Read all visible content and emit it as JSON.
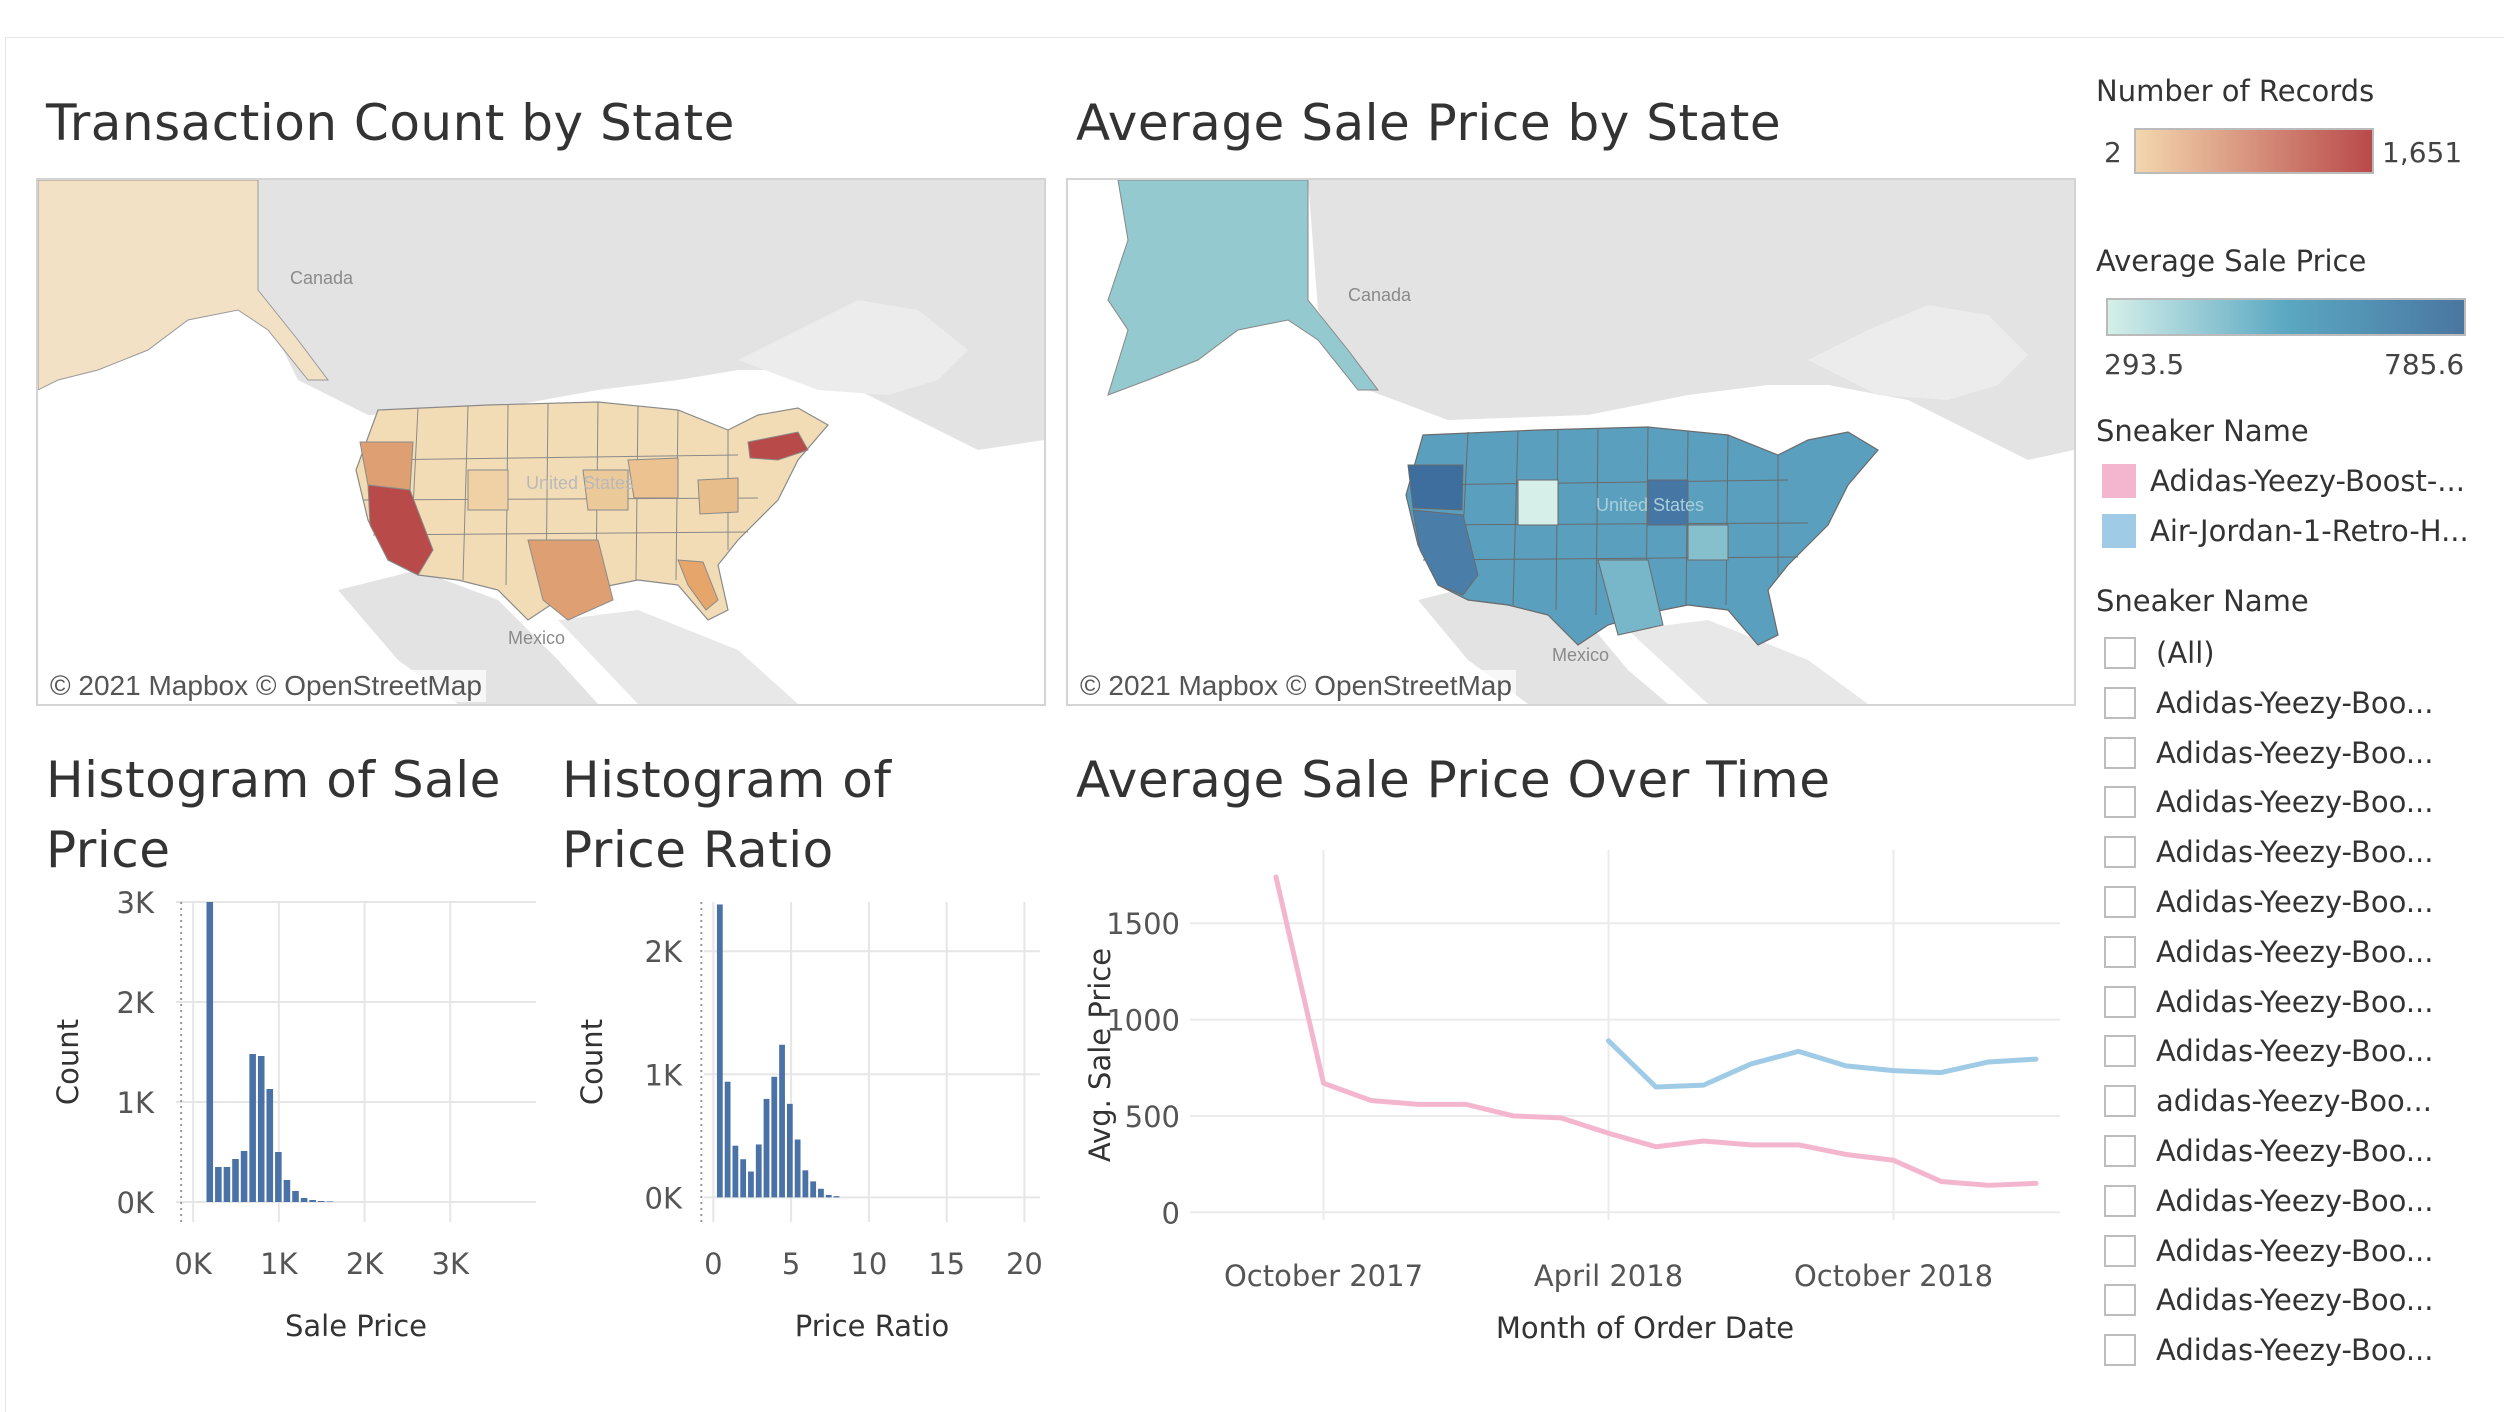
{
  "colors": {
    "count_low": "#f3d7ae",
    "count_high": "#b94a4a",
    "price_low": "#d6efe9",
    "price_high": "#4a76a0",
    "series_yeezy": "#f4b6ce",
    "series_jordan": "#9fcbe6",
    "bar": "#4a72a6"
  },
  "maps": {
    "count": {
      "title": "Transaction Count by State",
      "attribution": "© 2021 Mapbox  © OpenStreetMap",
      "labels": [
        "Canada",
        "Mexico",
        "United States"
      ]
    },
    "price": {
      "title": "Average Sale Price by State",
      "attribution": "© 2021 Mapbox  © OpenStreetMap",
      "labels": [
        "Canada",
        "Mexico",
        "United States"
      ]
    }
  },
  "legend": {
    "records": {
      "title": "Number of Records",
      "min": "2",
      "max": "1,651"
    },
    "avg_price": {
      "title": "Average Sale Price",
      "min": "293.5",
      "max": "785.6"
    },
    "sneaker_color": {
      "title": "Sneaker Name",
      "items": [
        {
          "label": "Adidas-Yeezy-Boost-...",
          "color": "#f4b6ce"
        },
        {
          "label": "Air-Jordan-1-Retro-H...",
          "color": "#9fcbe6"
        }
      ]
    }
  },
  "filter": {
    "title": "Sneaker Name",
    "items": [
      "(All)",
      "Adidas-Yeezy-Boo...",
      "Adidas-Yeezy-Boo...",
      "Adidas-Yeezy-Boo...",
      "Adidas-Yeezy-Boo...",
      "Adidas-Yeezy-Boo...",
      "Adidas-Yeezy-Boo...",
      "Adidas-Yeezy-Boo...",
      "Adidas-Yeezy-Boo...",
      "adidas-Yeezy-Boo...",
      "Adidas-Yeezy-Boo...",
      "Adidas-Yeezy-Boo...",
      "Adidas-Yeezy-Boo...",
      "Adidas-Yeezy-Boo...",
      "Adidas-Yeezy-Boo..."
    ]
  },
  "chart_data": [
    {
      "type": "bar",
      "title": "Histogram of Sale Price",
      "xlabel": "Sale Price",
      "ylabel": "Count",
      "xticks": [
        "0K",
        "1K",
        "2K",
        "3K"
      ],
      "xtick_values": [
        0,
        1000,
        2000,
        3000
      ],
      "yticks": [
        "0K",
        "1K",
        "2K",
        "3K"
      ],
      "ytick_values": [
        0,
        1000,
        2000,
        3000
      ],
      "xlim": [
        -200,
        4000
      ],
      "ylim": [
        -200,
        3000
      ],
      "bin_start": 150,
      "bin_width": 100,
      "values": [
        3000,
        350,
        350,
        430,
        510,
        1480,
        1460,
        1130,
        500,
        220,
        110,
        40,
        20,
        10,
        5
      ]
    },
    {
      "type": "bar",
      "title": "Histogram of Price Ratio",
      "xlabel": "Price Ratio",
      "ylabel": "Count",
      "xticks": [
        "0",
        "5",
        "10",
        "15",
        "20"
      ],
      "xtick_values": [
        0,
        5,
        10,
        15,
        20
      ],
      "yticks": [
        "0K",
        "1K",
        "2K"
      ],
      "ytick_values": [
        0,
        1000,
        2000
      ],
      "xlim": [
        -0.6,
        21
      ],
      "ylim": [
        -200,
        2400
      ],
      "bin_start": 0.2,
      "bin_width": 0.5,
      "values": [
        2380,
        940,
        420,
        310,
        210,
        430,
        800,
        980,
        1240,
        760,
        470,
        220,
        130,
        70,
        20,
        10
      ]
    },
    {
      "type": "line",
      "title": "Average Sale Price Over Time",
      "xlabel": "Month of Order Date",
      "ylabel": "Avg. Sale Price",
      "xticks": [
        "October 2017",
        "April 2018",
        "October 2018"
      ],
      "xtick_index": [
        1,
        7,
        13
      ],
      "x": [
        "2017-09",
        "2017-10",
        "2017-11",
        "2017-12",
        "2018-01",
        "2018-02",
        "2018-03",
        "2018-04",
        "2018-05",
        "2018-06",
        "2018-07",
        "2018-08",
        "2018-09",
        "2018-10",
        "2018-11",
        "2018-12",
        "2019-01",
        "2019-02"
      ],
      "yticks": [
        "0",
        "500",
        "1000",
        "1500"
      ],
      "ytick_values": [
        0,
        500,
        1000,
        1500
      ],
      "ylim": [
        -40,
        1880
      ],
      "series": [
        {
          "name": "Adidas-Yeezy-Boost-...",
          "values": [
            1740,
            670,
            580,
            560,
            560,
            500,
            490,
            410,
            340,
            370,
            350,
            350,
            300,
            270,
            160,
            140,
            150,
            null
          ]
        },
        {
          "name": "Air-Jordan-1-Retro-H...",
          "values": [
            null,
            null,
            null,
            null,
            null,
            null,
            null,
            890,
            650,
            660,
            770,
            835,
            760,
            735,
            725,
            780,
            795,
            null
          ]
        }
      ]
    }
  ]
}
